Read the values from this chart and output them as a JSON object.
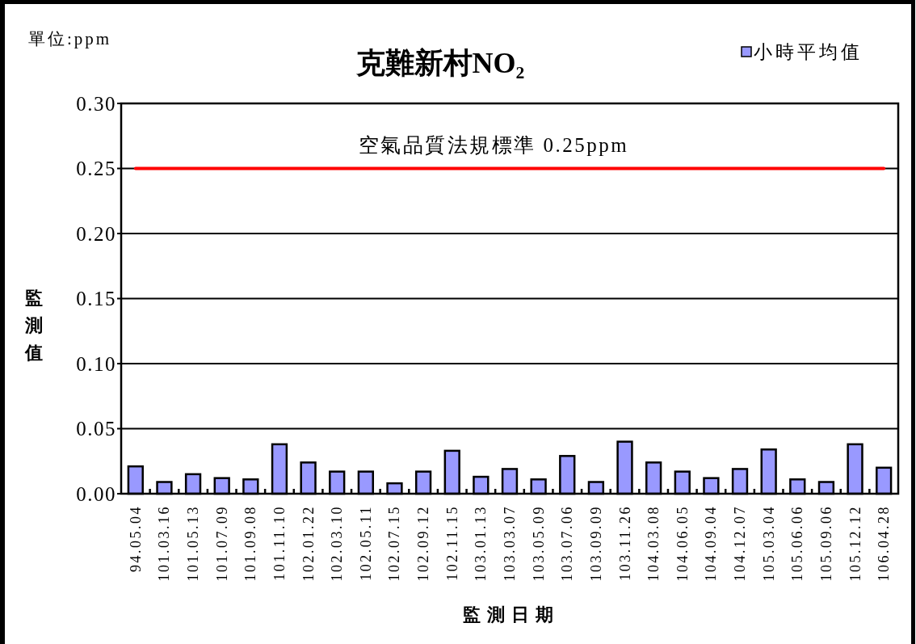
{
  "chart_data": {
    "type": "bar",
    "title": "克難新村NO₂",
    "xlabel": "監測日期",
    "ylabel": "監測值",
    "annotations": [
      "單位:ppm"
    ],
    "categories": [
      "94.05.04",
      "101.03.16",
      "101.05.13",
      "101.07.09",
      "101.09.08",
      "101.11.10",
      "102.01.22",
      "102.03.10",
      "102.05.11",
      "102.07.15",
      "102.09.12",
      "102.11.15",
      "103.01.13",
      "103.03.07",
      "103.05.09",
      "103.07.06",
      "103.09.09",
      "103.11.26",
      "104.03.08",
      "104.06.05",
      "104.09.04",
      "104.12.07",
      "105.03.04",
      "105.06.06",
      "105.09.06",
      "105.12.12",
      "106.04.28"
    ],
    "series": [
      {
        "name": "小時平均值",
        "color": "#9999ff",
        "values": [
          0.021,
          0.009,
          0.015,
          0.012,
          0.011,
          0.038,
          0.024,
          0.017,
          0.017,
          0.008,
          0.017,
          0.033,
          0.013,
          0.019,
          0.011,
          0.029,
          0.009,
          0.04,
          0.024,
          0.017,
          0.012,
          0.019,
          0.034,
          0.011,
          0.009,
          0.038,
          0.02
        ]
      }
    ],
    "ylim": [
      0,
      0.3
    ],
    "yticks": [
      {
        "value": 0,
        "label": "0.00"
      },
      0.05,
      {
        "value": 0.1,
        "label": "0.10"
      },
      0.15,
      {
        "value": 0.2,
        "label": "0.20"
      },
      0.25,
      {
        "value": 0.3,
        "label": "0.30"
      }
    ],
    "ref_lines": [
      {
        "axis": "y",
        "value": 0.25,
        "label": "空氣品質法規標準 0.25ppm",
        "color": "#ff0000"
      }
    ],
    "grid": "y",
    "legend": "top right"
  }
}
